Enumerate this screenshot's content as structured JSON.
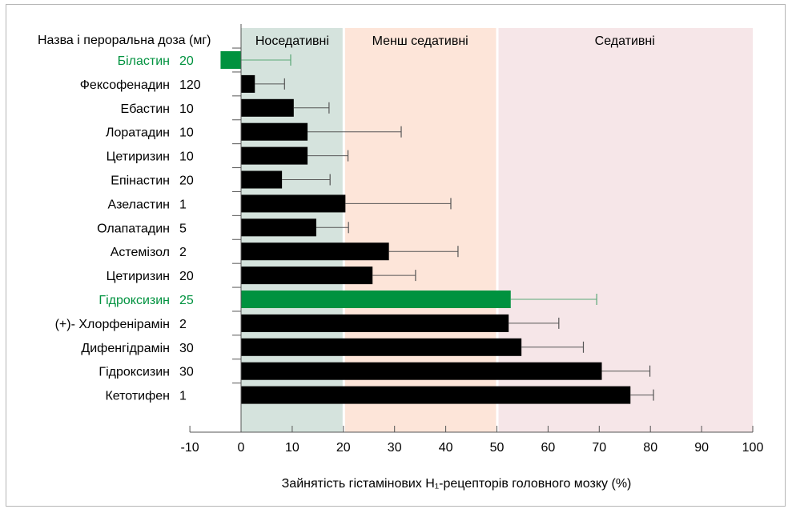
{
  "chart_data": {
    "type": "bar",
    "orientation": "horizontal",
    "title": "",
    "row_header": "Назва і пероральна доза (мг)",
    "xlabel": "Зайнятість гістамінових H₁-рецепторів головного мозку (%)",
    "xlim": [
      -10,
      100
    ],
    "xticks": [
      "-10",
      "0",
      "10",
      "20",
      "30",
      "40",
      "50",
      "60",
      "70",
      "80",
      "90",
      "100"
    ],
    "grid": false,
    "zones": [
      {
        "label": "Носедативні",
        "from": 0,
        "to": 20,
        "color": "#d5e3dd"
      },
      {
        "label": "Менш  седативні",
        "from": 20,
        "to": 50,
        "color": "#fde5d9"
      },
      {
        "label": "Седативні",
        "from": 50,
        "to": 100,
        "color": "#f6e6e8"
      }
    ],
    "highlight_color": "#00923f",
    "bar_color": "#000000",
    "rows": [
      {
        "name": "Біластин",
        "dose": "20",
        "value": -4,
        "error_upper": 9.7,
        "highlight": true
      },
      {
        "name": "Фексофенадин",
        "dose": "120",
        "value": 2.7,
        "error_upper": 8.5,
        "highlight": false
      },
      {
        "name": "Ебастин",
        "dose": "10",
        "value": 10.3,
        "error_upper": 17.2,
        "highlight": false
      },
      {
        "name": "Лоратадин",
        "dose": "10",
        "value": 13.0,
        "error_upper": 31.3,
        "highlight": false
      },
      {
        "name": "Цетиризин",
        "dose": "10",
        "value": 13.0,
        "error_upper": 20.9,
        "highlight": false
      },
      {
        "name": "Епінастин",
        "dose": "20",
        "value": 8.0,
        "error_upper": 17.4,
        "highlight": false
      },
      {
        "name": "Азеластин",
        "dose": "1",
        "value": 20.4,
        "error_upper": 41.0,
        "highlight": false
      },
      {
        "name": "Олапатадин",
        "dose": "5",
        "value": 14.7,
        "error_upper": 21.0,
        "highlight": false
      },
      {
        "name": "Астемізол",
        "dose": "2",
        "value": 28.9,
        "error_upper": 42.4,
        "highlight": false
      },
      {
        "name": "Цетиризин",
        "dose": "20",
        "value": 25.7,
        "error_upper": 34.1,
        "highlight": false
      },
      {
        "name": "Гідроксизин",
        "dose": "25",
        "value": 52.7,
        "error_upper": 69.5,
        "highlight": true
      },
      {
        "name": "(+)- Хлорфенірамін",
        "dose": "2",
        "value": 52.3,
        "error_upper": 62.1,
        "highlight": false
      },
      {
        "name": "Дифенгідрамін",
        "dose": "30",
        "value": 54.8,
        "error_upper": 66.9,
        "highlight": false
      },
      {
        "name": "Гідроксизин",
        "dose": "30",
        "value": 70.5,
        "error_upper": 79.9,
        "highlight": false
      },
      {
        "name": "Кетотифен",
        "dose": "1",
        "value": 76.1,
        "error_upper": 80.6,
        "highlight": false
      }
    ]
  }
}
